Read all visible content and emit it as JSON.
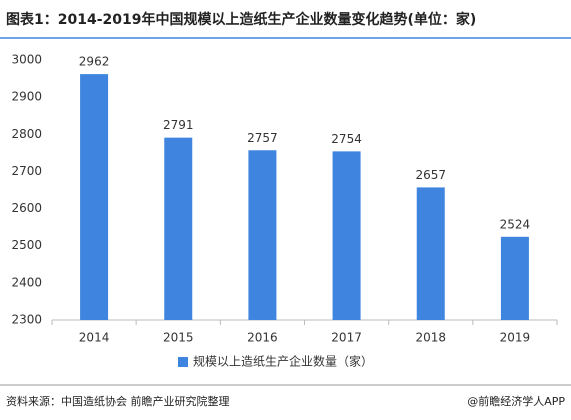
{
  "chart_data": {
    "type": "bar",
    "title": "图表1：2014-2019年中国规模以上造纸生产企业数量变化趋势(单位：家)",
    "categories": [
      "2014",
      "2015",
      "2016",
      "2017",
      "2018",
      "2019"
    ],
    "series": [
      {
        "name": "规模以上造纸生产企业数量（家）",
        "color": "#3f85df",
        "values": [
          2962,
          2791,
          2757,
          2754,
          2657,
          2524
        ]
      }
    ],
    "ylim": [
      2300,
      3000
    ],
    "yticks": [
      2300,
      2400,
      2500,
      2600,
      2700,
      2800,
      2900,
      3000
    ],
    "grid": false,
    "legend": "bottom",
    "source": "资料来源：中国造纸协会 前瞻产业研究院整理",
    "credit": "@前瞻经济学人APP"
  }
}
